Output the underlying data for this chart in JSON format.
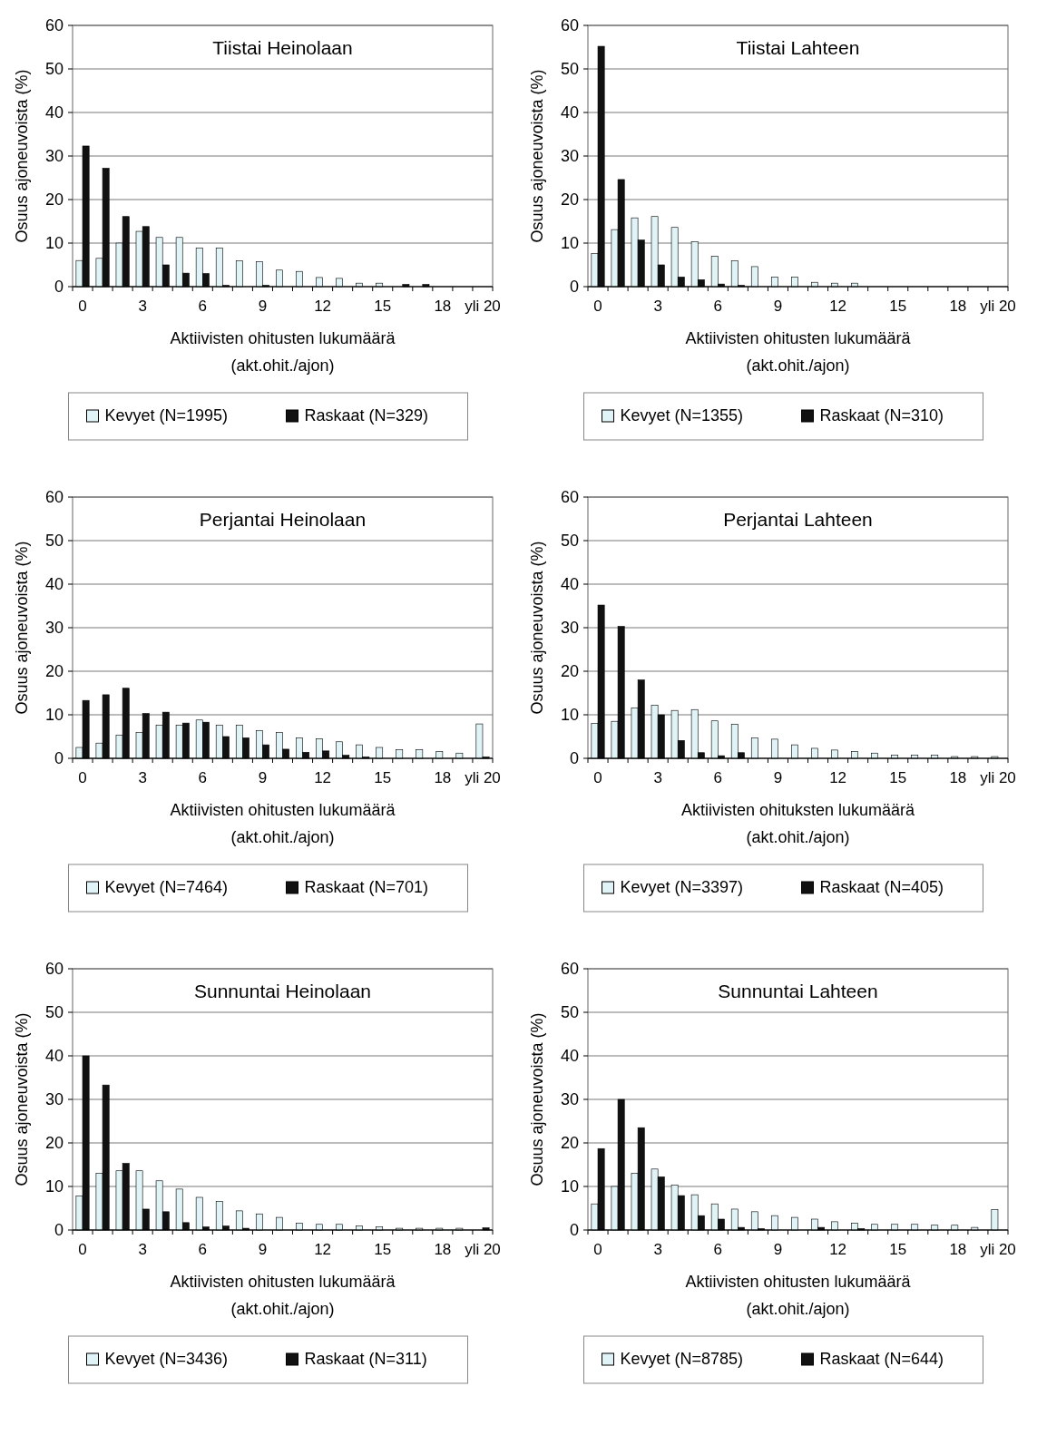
{
  "chart_data": [
    {
      "type": "bar",
      "title": "Tiistai Heinolaan",
      "xlabel": "Aktiivisten ohitusten lukumäärä\n(akt.ohit./ajon)",
      "ylabel": "Osuus ajoneuvoista (%)",
      "categories": [
        "0",
        null,
        null,
        "3",
        null,
        null,
        "6",
        null,
        null,
        "9",
        null,
        null,
        "12",
        null,
        null,
        "15",
        null,
        null,
        "18",
        null,
        "yli 20"
      ],
      "ylim": [
        0,
        60
      ],
      "yticks": [
        0,
        10,
        20,
        30,
        40,
        50,
        60
      ],
      "grid": "y",
      "legend": "bottom",
      "series": [
        {
          "name": "Kevyet (N=1995)",
          "color": "#e0f4f8",
          "values": [
            6,
            6.5,
            10,
            12.7,
            11.3,
            11.3,
            8.9,
            8.9,
            5.9,
            5.7,
            3.8,
            3.5,
            2.1,
            1.9,
            0.8,
            0.8,
            0,
            0,
            0,
            0,
            0
          ]
        },
        {
          "name": "Raskaat (N=329)",
          "color": "#111111",
          "values": [
            32.3,
            27.2,
            16.1,
            13.8,
            5,
            3.1,
            3,
            0.3,
            0,
            0.3,
            0,
            0,
            0,
            0,
            0,
            0,
            0.5,
            0.5,
            0,
            0,
            0
          ]
        }
      ]
    },
    {
      "type": "bar",
      "title": "Tiistai Lahteen",
      "xlabel": "Aktiivisten ohitusten lukumäärä\n(akt.ohit./ajon)",
      "ylabel": "Osuus ajoneuvoista (%)",
      "categories": [
        "0",
        null,
        null,
        "3",
        null,
        null,
        "6",
        null,
        null,
        "9",
        null,
        null,
        "12",
        null,
        null,
        "15",
        null,
        null,
        "18",
        null,
        "yli 20"
      ],
      "ylim": [
        0,
        60
      ],
      "yticks": [
        0,
        10,
        20,
        30,
        40,
        50,
        60
      ],
      "grid": "y",
      "legend": "bottom",
      "series": [
        {
          "name": "Kevyet (N=1355)",
          "color": "#e0f4f8",
          "values": [
            7.6,
            13.1,
            15.8,
            16.1,
            13.6,
            10.3,
            7,
            5.9,
            4.6,
            2.2,
            2.2,
            1,
            0.8,
            0.8,
            0,
            0,
            0,
            0,
            0,
            0,
            0
          ]
        },
        {
          "name": "Raskaat (N=310)",
          "color": "#111111",
          "values": [
            55.2,
            24.6,
            10.7,
            5,
            2.2,
            1.6,
            0.6,
            0.3,
            0,
            0,
            0,
            0,
            0,
            0,
            0,
            0,
            0,
            0,
            0,
            0,
            0
          ]
        }
      ]
    },
    {
      "type": "bar",
      "title": "Perjantai Heinolaan",
      "xlabel": "Aktiivisten ohitusten lukumäärä\n(akt.ohit./ajon)",
      "ylabel": "Osuus ajoneuvoista (%)",
      "categories": [
        "0",
        null,
        null,
        "3",
        null,
        null,
        "6",
        null,
        null,
        "9",
        null,
        null,
        "12",
        null,
        null,
        "15",
        null,
        null,
        "18",
        null,
        "yli 20"
      ],
      "ylim": [
        0,
        60
      ],
      "yticks": [
        0,
        10,
        20,
        30,
        40,
        50,
        60
      ],
      "grid": "y",
      "legend": "bottom",
      "series": [
        {
          "name": "Kevyet (N=7464)",
          "color": "#e0f4f8",
          "values": [
            2.5,
            3.5,
            5.3,
            5.9,
            7.6,
            7.6,
            8.8,
            7.6,
            7.6,
            6.4,
            5.9,
            4.7,
            4.5,
            3.8,
            3.1,
            2.5,
            2,
            2,
            1.6,
            1.2,
            7.9
          ]
        },
        {
          "name": "Raskaat (N=701)",
          "color": "#111111",
          "values": [
            13.3,
            14.6,
            16.1,
            10.3,
            10.6,
            8.1,
            8.3,
            5,
            4.7,
            3.1,
            2.1,
            1.4,
            1.7,
            0.7,
            0.3,
            0,
            0,
            0,
            0,
            0,
            0.3
          ]
        }
      ]
    },
    {
      "type": "bar",
      "title": "Perjantai Lahteen",
      "xlabel": "Aktiivisten ohituksten lukumäärä\n(akt.ohit./ajon)",
      "ylabel": "Osuus ajoneuvoista (%)",
      "categories": [
        "0",
        null,
        null,
        "3",
        null,
        null,
        "6",
        null,
        null,
        "9",
        null,
        null,
        "12",
        null,
        null,
        "15",
        null,
        null,
        "18",
        null,
        "yli 20"
      ],
      "ylim": [
        0,
        60
      ],
      "yticks": [
        0,
        10,
        20,
        30,
        40,
        50,
        60
      ],
      "grid": "y",
      "legend": "bottom",
      "series": [
        {
          "name": "Kevyet (N=3397)",
          "color": "#e0f4f8",
          "values": [
            8,
            8.5,
            11.6,
            12.2,
            11,
            11.2,
            8.6,
            7.8,
            4.7,
            4.4,
            3.1,
            2.3,
            1.9,
            1.6,
            1.2,
            0.7,
            0.7,
            0.7,
            0.4,
            0.4,
            0.4
          ]
        },
        {
          "name": "Raskaat (N=405)",
          "color": "#111111",
          "values": [
            35.2,
            30.3,
            18,
            10,
            4.1,
            1.3,
            0.6,
            1.3,
            0,
            0,
            0,
            0,
            0,
            0,
            0,
            0,
            0,
            0,
            0,
            0,
            0
          ]
        }
      ]
    },
    {
      "type": "bar",
      "title": "Sunnuntai Heinolaan",
      "xlabel": "Aktiivisten ohitusten lukumäärä\n(akt.ohit./ajon)",
      "ylabel": "Osuus ajoneuvoista (%)",
      "categories": [
        "0",
        null,
        null,
        "3",
        null,
        null,
        "6",
        null,
        null,
        "9",
        null,
        null,
        "12",
        null,
        null,
        "15",
        null,
        null,
        "18",
        null,
        "yli 20"
      ],
      "ylim": [
        0,
        60
      ],
      "yticks": [
        0,
        10,
        20,
        30,
        40,
        50,
        60
      ],
      "grid": "y",
      "legend": "bottom",
      "series": [
        {
          "name": "Kevyet (N=3436)",
          "color": "#e0f4f8",
          "values": [
            7.8,
            13,
            13.6,
            13.6,
            11.3,
            9.4,
            7.5,
            6.6,
            4.4,
            3.7,
            2.9,
            1.6,
            1.3,
            1.3,
            0.9,
            0.7,
            0.4,
            0.4,
            0.4,
            0.4,
            0
          ]
        },
        {
          "name": "Raskaat (N=311)",
          "color": "#111111",
          "values": [
            40,
            33.3,
            15.3,
            4.8,
            4.2,
            1.7,
            0.7,
            0.9,
            0.4,
            0,
            0,
            0,
            0,
            0,
            0,
            0,
            0,
            0,
            0,
            0,
            0.5
          ]
        }
      ]
    },
    {
      "type": "bar",
      "title": "Sunnuntai Lahteen",
      "xlabel": "Aktiivisten ohitusten lukumäärä\n(akt.ohit./ajon)",
      "ylabel": "Osuus ajoneuvoista (%)",
      "categories": [
        "0",
        null,
        null,
        "3",
        null,
        null,
        "6",
        null,
        null,
        "9",
        null,
        null,
        "12",
        null,
        null,
        "15",
        null,
        null,
        "18",
        null,
        "yli 20"
      ],
      "ylim": [
        0,
        60
      ],
      "yticks": [
        0,
        10,
        20,
        30,
        40,
        50,
        60
      ],
      "grid": "y",
      "legend": "bottom",
      "series": [
        {
          "name": "Kevyet (N=8785)",
          "color": "#e0f4f8",
          "values": [
            6,
            10,
            13,
            14,
            10.3,
            8.1,
            6,
            4.8,
            4.2,
            3.3,
            2.9,
            2.5,
            1.9,
            1.6,
            1.3,
            1.3,
            1.3,
            1.1,
            1.1,
            0.6,
            4.7
          ]
        },
        {
          "name": "Raskaat (N=644)",
          "color": "#111111",
          "values": [
            18.7,
            30,
            23.5,
            12.2,
            7.9,
            3.3,
            2.5,
            0.6,
            0.3,
            0,
            0,
            0.6,
            0,
            0.3,
            0,
            0,
            0,
            0,
            0,
            0,
            0
          ]
        }
      ]
    }
  ]
}
